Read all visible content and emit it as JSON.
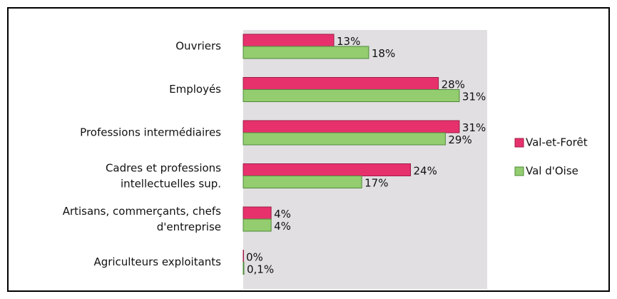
{
  "chart_data": {
    "type": "bar",
    "orientation": "horizontal",
    "categories": [
      "Ouvriers",
      "Employés",
      "Professions intermédiaires",
      "Cadres et professions\nintellectuelles sup.",
      "Artisans, commerçants, chefs\nd'entreprise",
      "Agriculteurs exploitants"
    ],
    "series": [
      {
        "name": "Val-et-Forêt",
        "color": "#e6316d",
        "values": [
          13,
          28,
          31,
          24,
          4,
          0
        ],
        "value_labels": [
          "13%",
          "28%",
          "31%",
          "24%",
          "4%",
          "0%"
        ]
      },
      {
        "name": "Val d'Oise",
        "color": "#93cd6f",
        "values": [
          18,
          31,
          29,
          17,
          4,
          0.1
        ],
        "value_labels": [
          "18%",
          "31%",
          "29%",
          "17%",
          "4%",
          "0,1%"
        ]
      }
    ],
    "xlim": [
      0,
      35
    ],
    "legend": "right"
  }
}
